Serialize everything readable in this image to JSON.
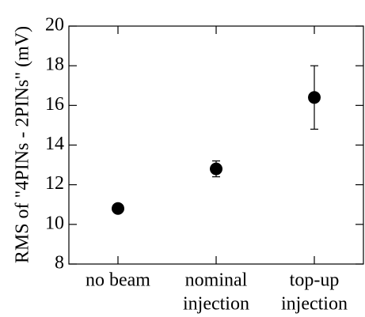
{
  "chart_data": {
    "type": "scatter",
    "y_label": "RMS of \"4PINs - 2PINs\" (mV)",
    "categories": [
      [
        "no beam"
      ],
      [
        "nominal",
        "injection"
      ],
      [
        "top-up",
        "injection"
      ]
    ],
    "values": [
      10.8,
      12.8,
      16.4
    ],
    "errors": [
      0.2,
      0.4,
      1.6
    ],
    "color": "#000000",
    "ylim": [
      8,
      20
    ],
    "yticks": [
      8,
      10,
      12,
      14,
      16,
      18,
      20
    ]
  }
}
